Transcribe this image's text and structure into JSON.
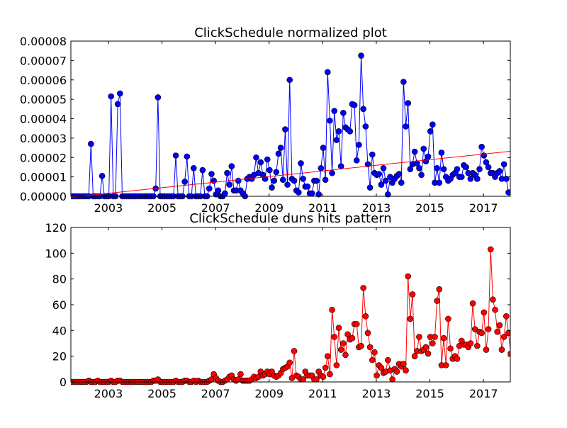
{
  "chart_data": [
    {
      "type": "line",
      "title": "ClickSchedule normalized plot",
      "xlabel": "",
      "ylabel": "",
      "xlim": [
        2001.6,
        2018.0
      ],
      "ylim": [
        0,
        8e-05
      ],
      "x_ticks": [
        "2003",
        "2005",
        "2007",
        "2009",
        "2011",
        "2013",
        "2015",
        "2017"
      ],
      "y_ticks": [
        "0.00000",
        "0.00001",
        "0.00002",
        "0.00003",
        "0.00004",
        "0.00005",
        "0.00006",
        "0.00007",
        "0.00008"
      ],
      "grid": false,
      "series": [
        {
          "color": "#0000ff",
          "marker": "circle",
          "x_start": 2001.6,
          "x_step": 0.08333,
          "values": [
            0,
            0,
            0,
            0,
            0,
            0,
            0,
            0,
            0,
            2.7e-05,
            0,
            0,
            0,
            0,
            1.05e-05,
            0,
            0,
            0,
            5.15e-05,
            0,
            0,
            4.75e-05,
            5.3e-05,
            0,
            0,
            0,
            0,
            0,
            0,
            0,
            0,
            0,
            0,
            0,
            0,
            0,
            0,
            0,
            4e-06,
            5.1e-05,
            0,
            0,
            0,
            0,
            0,
            0,
            0,
            2.1e-05,
            0,
            0,
            0,
            7.5e-06,
            2.05e-05,
            0,
            0,
            1.45e-05,
            0,
            0,
            0,
            1.35e-05,
            0,
            0,
            4e-06,
            1.15e-05,
            8e-06,
            1e-06,
            3e-06,
            0,
            0,
            1.5e-06,
            1.2e-05,
            6e-06,
            1.55e-05,
            3e-06,
            3e-06,
            8e-06,
            3e-06,
            1.5e-06,
            0,
            9e-06,
            1e-05,
            9e-06,
            1.1e-05,
            2e-05,
            1.2e-05,
            1.75e-05,
            1.1e-05,
            9e-06,
            1.9e-05,
            1.35e-05,
            4.5e-06,
            8e-06,
            1.25e-05,
            2.2e-05,
            2.5e-05,
            8.5e-06,
            3.45e-05,
            6e-06,
            6e-05,
            9e-06,
            8e-06,
            3e-06,
            2e-06,
            1.7e-05,
            9e-06,
            5e-06,
            5e-06,
            1.5e-06,
            1.5e-06,
            8e-06,
            8e-06,
            1e-06,
            1.45e-05,
            2.5e-05,
            8.5e-06,
            6.4e-05,
            3.9e-05,
            1.2e-05,
            4.4e-05,
            2.9e-05,
            3.35e-05,
            1.55e-05,
            4.3e-05,
            3.55e-05,
            3.45e-05,
            3.35e-05,
            4.75e-05,
            4.7e-05,
            1.85e-05,
            2.65e-05,
            7.25e-05,
            4.5e-05,
            3.6e-05,
            1.65e-05,
            4.5e-06,
            2.15e-05,
            1.2e-05,
            1.1e-05,
            1.15e-05,
            6e-06,
            1.45e-05,
            8e-06,
            1e-06,
            1e-05,
            7e-06,
            9e-06,
            1.05e-05,
            1.15e-05,
            7e-06,
            5.9e-05,
            3.6e-05,
            4.8e-05,
            1.4e-05,
            1.65e-05,
            2.3e-05,
            1.7e-05,
            1.45e-05,
            1.1e-05,
            2.45e-05,
            1.8e-05,
            2.05e-05,
            3.35e-05,
            3.7e-05,
            7e-06,
            1.45e-05,
            7e-06,
            2.25e-05,
            1.4e-05,
            1e-05,
            8e-06,
            9e-06,
            1.1e-05,
            1.2e-05,
            1.4e-05,
            1e-05,
            1e-05,
            1.6e-05,
            1.5e-05,
            1.2e-05,
            9e-06,
            1.2e-05,
            1.1e-05,
            9e-06,
            1.4e-05,
            2.55e-05,
            2.1e-05,
            1.75e-05,
            1.5e-05,
            1.2e-05,
            1.2e-05,
            1e-05,
            1.2e-05,
            1.3e-05,
            9e-06,
            1.65e-05,
            9e-06,
            2e-06
          ]
        }
      ],
      "trendline": {
        "color": "#ff0000",
        "x": [
          2001.6,
          2018.0
        ],
        "y": [
          -5e-07,
          2.32e-05
        ]
      }
    },
    {
      "type": "line",
      "title": "ClickSchedule duns hits pattern",
      "xlabel": "",
      "ylabel": "",
      "xlim": [
        2001.6,
        2018.0
      ],
      "ylim": [
        0,
        120
      ],
      "x_ticks": [
        "2003",
        "2005",
        "2007",
        "2009",
        "2011",
        "2013",
        "2015",
        "2017"
      ],
      "y_ticks": [
        "0",
        "20",
        "40",
        "60",
        "80",
        "100",
        "120"
      ],
      "grid": false,
      "series": [
        {
          "color": "#ff0000",
          "marker": "circle",
          "x_start": 2001.6,
          "x_step": 0.08333,
          "values": [
            0,
            0,
            0,
            0,
            0,
            0,
            0,
            0,
            1,
            0,
            0,
            0,
            1,
            0,
            0,
            0,
            0,
            0,
            1,
            0,
            0,
            1,
            1,
            0,
            0,
            0,
            0,
            0,
            0,
            0,
            0,
            0,
            0,
            0,
            0,
            0,
            0,
            1,
            1,
            2,
            0,
            0,
            0,
            0,
            0,
            0,
            0,
            1,
            0,
            0,
            0,
            1,
            1,
            0,
            0,
            1,
            0,
            1,
            0,
            0,
            0,
            0,
            1,
            2,
            6,
            3,
            1,
            0,
            0,
            1,
            2,
            4,
            5,
            2,
            1,
            2,
            6,
            1,
            1,
            1,
            1,
            2,
            4,
            3,
            4,
            8,
            5,
            6,
            8,
            6,
            8,
            5,
            4,
            5,
            7,
            10,
            11,
            12,
            15,
            3,
            24,
            5,
            4,
            2,
            2,
            8,
            5,
            5,
            5,
            2,
            2,
            8,
            5,
            4,
            11,
            20,
            6,
            56,
            35,
            13,
            42,
            25,
            30,
            21,
            37,
            33,
            34,
            45,
            45,
            27,
            28,
            73,
            51,
            38,
            27,
            17,
            23,
            5,
            13,
            11,
            7,
            8,
            17,
            9,
            2,
            10,
            8,
            14,
            12,
            14,
            9,
            82,
            49,
            68,
            20,
            24,
            35,
            24,
            25,
            27,
            22,
            35,
            30,
            35,
            63,
            72,
            13,
            34,
            13,
            49,
            26,
            18,
            20,
            18,
            28,
            32,
            29,
            29,
            27,
            30,
            61,
            41,
            28,
            39,
            38,
            54,
            25,
            41,
            103,
            64,
            56,
            39,
            44,
            25,
            35,
            51,
            38,
            22,
            3
          ]
        }
      ]
    }
  ]
}
